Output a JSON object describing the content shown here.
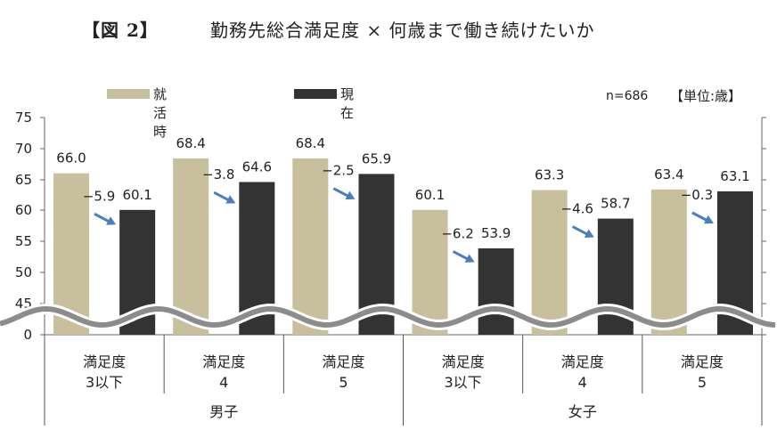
{
  "title": {
    "figure_label": "【図 2】",
    "main": "勤務先総合満足度 × 何歳まで働き続けたいか"
  },
  "legend": {
    "items": [
      {
        "label": "就活時",
        "color": "#c8bf9d"
      },
      {
        "label": "現在",
        "color": "#333333"
      }
    ]
  },
  "note": {
    "n": "n=686",
    "unit": "【単位:歳】"
  },
  "chart_data": {
    "type": "bar",
    "y_ticks": [
      "75",
      "70",
      "65",
      "60",
      "55",
      "50",
      "45",
      "0"
    ],
    "ylim": [
      40,
      75
    ],
    "axis_break": true,
    "categories": [
      {
        "line1": "満足度",
        "line2": "3以下",
        "group": "男子"
      },
      {
        "line1": "満足度",
        "line2": "4",
        "group": "男子"
      },
      {
        "line1": "満足度",
        "line2": "5",
        "group": "男子"
      },
      {
        "line1": "満足度",
        "line2": "3以下",
        "group": "女子"
      },
      {
        "line1": "満足度",
        "line2": "4",
        "group": "女子"
      },
      {
        "line1": "満足度",
        "line2": "5",
        "group": "女子"
      }
    ],
    "groups": [
      "男子",
      "女子"
    ],
    "series": [
      {
        "name": "就活時",
        "color": "#c8bf9d",
        "values": [
          66.0,
          68.4,
          68.4,
          60.1,
          63.3,
          63.4
        ],
        "labels": [
          "66.0",
          "68.4",
          "68.4",
          "60.1",
          "63.3",
          "63.4"
        ]
      },
      {
        "name": "現在",
        "color": "#333333",
        "values": [
          60.1,
          64.6,
          65.9,
          53.9,
          58.7,
          63.1
        ],
        "labels": [
          "60.1",
          "64.6",
          "65.9",
          "53.9",
          "58.7",
          "63.1"
        ]
      }
    ],
    "differences": [
      "−5.9",
      "−3.8",
      "−2.5",
      "−6.2",
      "−4.6",
      "−0.3"
    ],
    "grid": false,
    "legend_position": "top-left"
  }
}
